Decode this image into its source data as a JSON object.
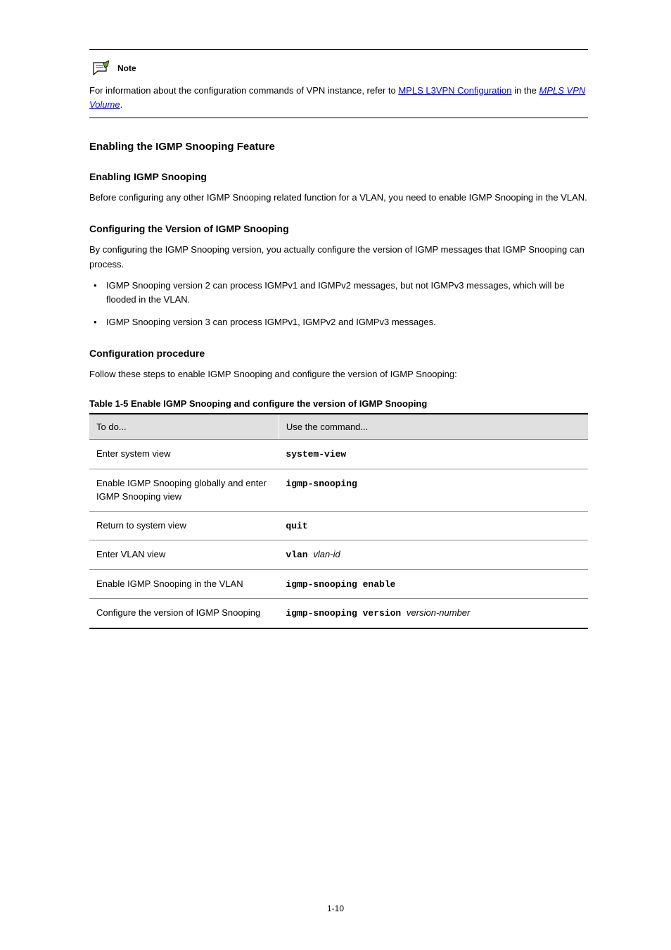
{
  "note": {
    "label": "Note",
    "text_before_link1": "For information about the configuration commands of VPN instance, refer to ",
    "link1": "MPLS L3VPN Configuration",
    "text_mid": " in the ",
    "link2_ital": "MPLS VPN Volume",
    "text_after": "."
  },
  "sections": {
    "enable_heading": "Enabling the IGMP Snooping Feature",
    "enable_sub": "Enabling IGMP Snooping",
    "enable_para": "Before configuring any other IGMP Snooping related function for a VLAN, you need to enable IGMP Snooping in the VLAN.",
    "version_sub": "Configuring the Version of IGMP Snooping",
    "version_para1": "By configuring the IGMP Snooping version, you actually configure the version of IGMP messages that IGMP Snooping can process.",
    "bullets": [
      "IGMP Snooping version 2 can process IGMPv1 and IGMPv2 messages, but not IGMPv3 messages, which will be flooded in the VLAN.",
      "IGMP Snooping version 3 can process IGMPv1, IGMPv2 and IGMPv3 messages."
    ],
    "proc_sub": "Configuration procedure",
    "proc_para": "Follow these steps to enable IGMP Snooping and configure the version of IGMP Snooping:",
    "table_caption": "Table 1-5 Enable IGMP Snooping and configure the version of IGMP Snooping"
  },
  "table": {
    "headers": [
      "To do...",
      "Use the command..."
    ],
    "rows": [
      [
        "Enter system view",
        {
          "mono": "system-view"
        }
      ],
      [
        "Enable IGMP Snooping globally and enter IGMP Snooping view",
        {
          "mono": "igmp-snooping"
        }
      ],
      [
        "Return to system view",
        {
          "mono": "quit"
        }
      ],
      [
        "Enter VLAN view",
        {
          "parts": [
            {
              "mono": "vlan "
            },
            {
              "ital": "vlan-id"
            }
          ]
        }
      ],
      [
        "Enable IGMP Snooping in the VLAN",
        {
          "mono": "igmp-snooping enable"
        }
      ],
      [
        "Configure the version of IGMP Snooping",
        {
          "parts": [
            {
              "mono": "igmp-snooping version "
            },
            {
              "ital": "version-number"
            }
          ]
        }
      ]
    ]
  },
  "page_number": "1-10"
}
